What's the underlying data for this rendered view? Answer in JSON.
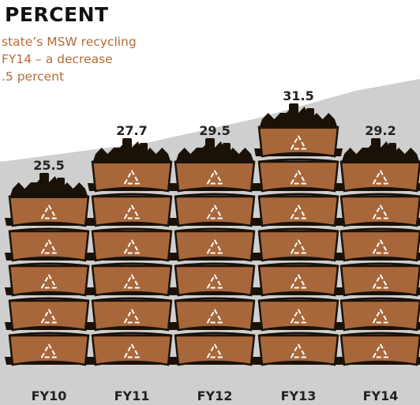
{
  "header": {
    "title": "PERCENT",
    "note_lines": [
      "state’s MSW recycling",
      "FY14 – a decrease",
      ".5 percent"
    ]
  },
  "colors": {
    "bin_fill": "#a8673a",
    "bin_dark": "#1a1209",
    "background_gray": "#cfcfcf",
    "note_text": "#b36c3a",
    "symbol": "#ffffff"
  },
  "icons": {
    "unit": "recycling-bin-icon",
    "top": "recyclables-pile-icon"
  },
  "chart_data": {
    "type": "bar",
    "categories": [
      "FY10",
      "FY11",
      "FY12",
      "FY13",
      "FY14"
    ],
    "values": [
      25.5,
      27.7,
      29.5,
      31.5,
      29.2
    ],
    "value_labels": [
      "25.5",
      "27.7",
      "29.5",
      "31.5",
      "29.2"
    ],
    "title": "PERCENT",
    "xlabel": "",
    "ylabel": "",
    "grid": false,
    "legend": "none"
  }
}
